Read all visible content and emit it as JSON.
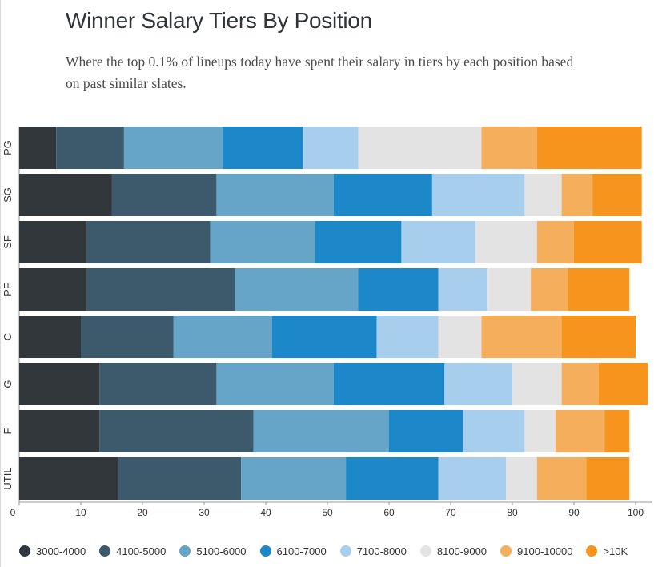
{
  "title": "Winner Salary Tiers By Position",
  "subtitle": "Where the top 0.1% of lineups today have spent their salary in tiers by each position based on past similar slates.",
  "chart_data": {
    "type": "bar",
    "orientation": "horizontal",
    "stacked": true,
    "categories": [
      "PG",
      "SG",
      "SF",
      "PF",
      "C",
      "G",
      "F",
      "UTIL"
    ],
    "xlim": [
      0,
      100
    ],
    "xticks": [
      "0",
      "10",
      "20",
      "30",
      "40",
      "50",
      "60",
      "70",
      "80",
      "90",
      "100"
    ],
    "legend_position": "bottom",
    "series": [
      {
        "name": "3000-4000",
        "color": "#32373b",
        "values": [
          6,
          15,
          11,
          11,
          10,
          13,
          13,
          16
        ]
      },
      {
        "name": "4100-5000",
        "color": "#3d5a6c",
        "values": [
          11,
          17,
          20,
          24,
          15,
          19,
          25,
          20
        ]
      },
      {
        "name": "5100-6000",
        "color": "#66a5c8",
        "values": [
          16,
          19,
          17,
          20,
          16,
          19,
          22,
          17
        ]
      },
      {
        "name": "6100-7000",
        "color": "#1c87c9",
        "values": [
          13,
          16,
          14,
          13,
          17,
          18,
          12,
          15
        ]
      },
      {
        "name": "7100-8000",
        "color": "#a7cfed",
        "values": [
          9,
          15,
          12,
          8,
          10,
          11,
          10,
          11
        ]
      },
      {
        "name": "8100-9000",
        "color": "#e3e3e3",
        "values": [
          20,
          6,
          10,
          7,
          7,
          8,
          5,
          5
        ]
      },
      {
        "name": "9100-10000",
        "color": "#f4ae5c",
        "values": [
          9,
          5,
          6,
          6,
          13,
          6,
          8,
          8
        ]
      },
      {
        "name": ">10K",
        "color": "#f7941e",
        "values": [
          17,
          8,
          11,
          10,
          12,
          8,
          4,
          7
        ]
      }
    ]
  }
}
